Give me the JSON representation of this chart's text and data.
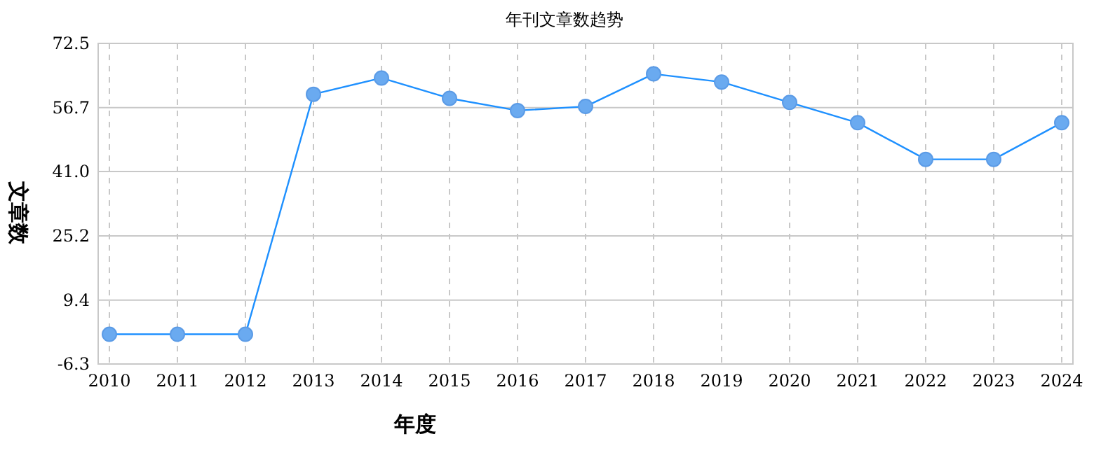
{
  "chart_data": {
    "type": "line",
    "title": "年刊文章数趋势",
    "xlabel": "年度",
    "ylabel": "文章数",
    "categories": [
      "2010",
      "2011",
      "2012",
      "2013",
      "2014",
      "2015",
      "2016",
      "2017",
      "2018",
      "2019",
      "2020",
      "2021",
      "2022",
      "2023",
      "2024"
    ],
    "series": [
      {
        "color": "#1e90ff",
        "values": [
          1,
          1,
          1,
          60,
          64,
          59,
          56,
          57,
          65,
          63,
          58,
          53,
          44,
          44,
          53
        ]
      }
    ],
    "ylim": [
      -6.3,
      72.5
    ],
    "yticks": [
      {
        "value": -6.3,
        "label": "-6.3"
      },
      {
        "value": 9.4,
        "label": "9.4"
      },
      {
        "value": 25.2,
        "label": "25.2"
      },
      {
        "value": 41,
        "label": "41.0"
      },
      {
        "value": 56.7,
        "label": "56.7"
      },
      {
        "value": 72.5,
        "label": "72.5"
      }
    ],
    "grid": true,
    "marker": "circle",
    "line_style": "solid"
  }
}
